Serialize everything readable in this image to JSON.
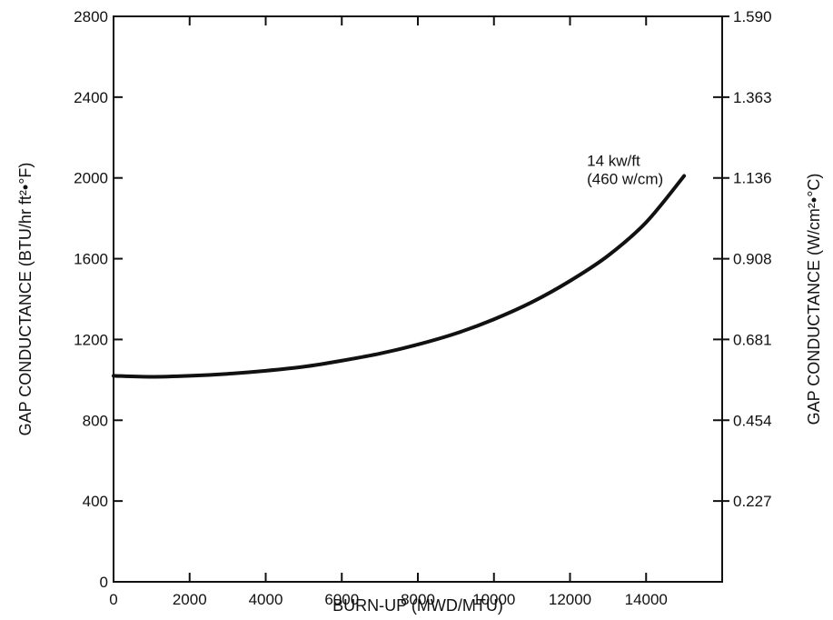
{
  "chart_data": {
    "type": "line",
    "xlabel": "BURN-UP (MWD/MTU)",
    "ylabel_left": "GAP CONDUCTANCE (BTU/hr  ft²•°F)",
    "ylabel_right": "GAP CONDUCTANCE (W/cm²•°C)",
    "xlim": [
      0,
      16000
    ],
    "ylim": [
      0,
      2800
    ],
    "x_ticks": [
      0,
      2000,
      4000,
      6000,
      8000,
      10000,
      12000,
      14000
    ],
    "x_tick_labels": [
      "0",
      "2000",
      "4000",
      "6000",
      "8000",
      "10000",
      "12000",
      "14000"
    ],
    "y_ticks": [
      0,
      400,
      800,
      1200,
      1600,
      2000,
      2400,
      2800
    ],
    "y_tick_labels": [
      "0",
      "400",
      "800",
      "1200",
      "1600",
      "2000",
      "2400",
      "2800"
    ],
    "y_right_ticks": [
      400,
      800,
      1200,
      1600,
      2000,
      2400,
      2800
    ],
    "y_right_tick_labels": [
      "0.227",
      "0.454",
      "0.681",
      "0.908",
      "1.136",
      "1.363",
      "1.590"
    ],
    "grid": false,
    "series": [
      {
        "x": [
          0,
          1000,
          2000,
          3000,
          4000,
          5000,
          6000,
          7000,
          8000,
          9000,
          10000,
          11000,
          12000,
          13000,
          14000,
          15000
        ],
        "y": [
          1020,
          1015,
          1020,
          1030,
          1045,
          1065,
          1095,
          1130,
          1175,
          1230,
          1300,
          1385,
          1490,
          1615,
          1780,
          2010
        ]
      }
    ],
    "annotation": {
      "lines": [
        "14 kw/ft",
        "(460 w/cm)"
      ],
      "x": 13400,
      "y": 2010
    }
  }
}
